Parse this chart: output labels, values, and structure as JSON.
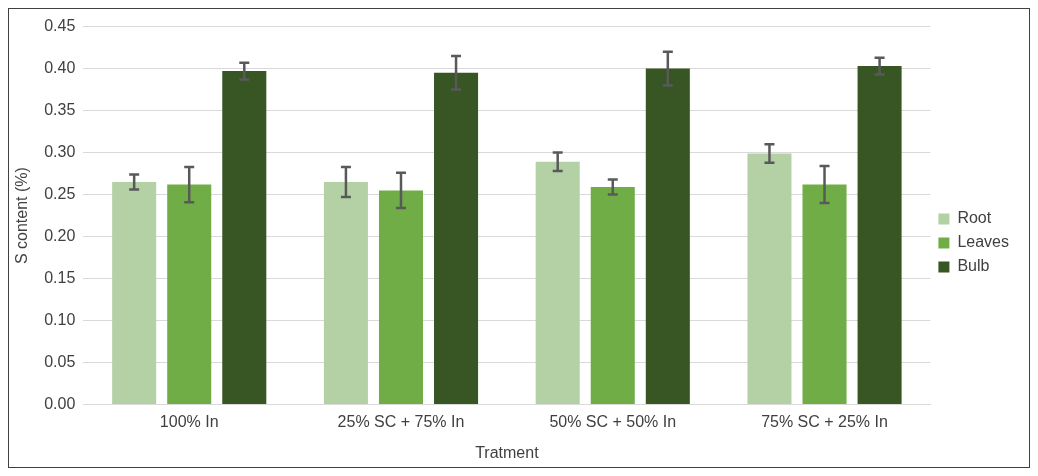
{
  "chart_data": {
    "type": "bar",
    "xlabel": "Tratment",
    "ylabel": "S content (%)",
    "categories": [
      "100% In",
      "25% SC + 75% In",
      "50% SC + 50% In",
      "75% SC + 25% In"
    ],
    "series": [
      {
        "name": "Root",
        "color": "#b4d1a6",
        "values": [
          0.265,
          0.265,
          0.289,
          0.299
        ],
        "errors": [
          0.009,
          0.018,
          0.011,
          0.011
        ]
      },
      {
        "name": "Leaves",
        "color": "#70ad47",
        "values": [
          0.262,
          0.255,
          0.259,
          0.262
        ],
        "errors": [
          0.021,
          0.021,
          0.009,
          0.022
        ]
      },
      {
        "name": "Bulb",
        "color": "#375623",
        "values": [
          0.397,
          0.395,
          0.4,
          0.403
        ],
        "errors": [
          0.01,
          0.02,
          0.02,
          0.01
        ]
      }
    ],
    "ylim": [
      0,
      0.45
    ],
    "yticks": [
      {
        "value": 0,
        "label": "0.00"
      },
      {
        "value": 0.05,
        "label": "0.05"
      },
      {
        "value": 0.1,
        "label": "0.10"
      },
      {
        "value": 0.15,
        "label": "0.15"
      },
      {
        "value": 0.2,
        "label": "0.20"
      },
      {
        "value": 0.25,
        "label": "0.25"
      },
      {
        "value": 0.3,
        "label": "0.30"
      },
      {
        "value": 0.35,
        "label": "0.35"
      },
      {
        "value": 0.4,
        "label": "0.40"
      },
      {
        "value": 0.45,
        "label": "0.45"
      }
    ],
    "grid": "y",
    "legend": "right"
  }
}
